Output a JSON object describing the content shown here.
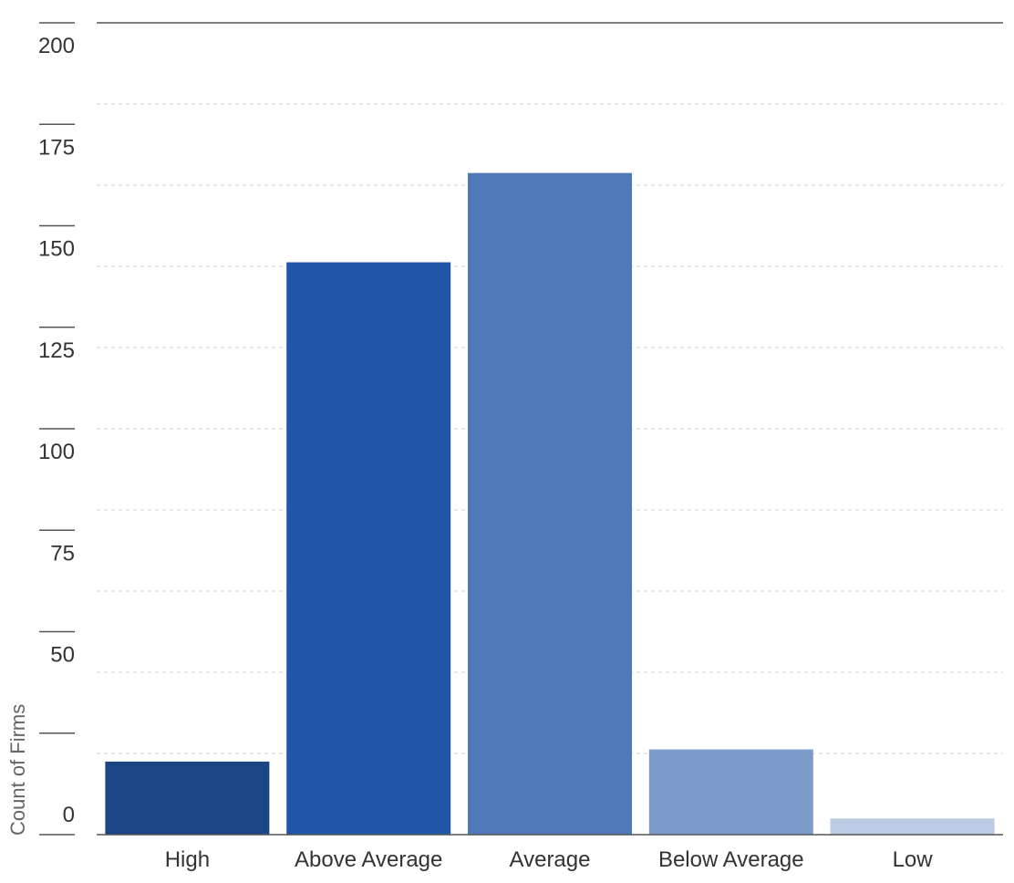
{
  "chart_data": {
    "type": "bar",
    "ylabel": "Count of Firms",
    "xlabel": "",
    "categories": [
      "High",
      "Above Average",
      "Average",
      "Below Average",
      "Low"
    ],
    "values": [
      18,
      141,
      163,
      21,
      4
    ],
    "colors": [
      "#1b4585",
      "#1f56a7",
      "#4f79b8",
      "#7b9bca",
      "#bccce5"
    ],
    "ylim": [
      0,
      200
    ],
    "yticks": [
      "200",
      "175",
      "150",
      "125",
      "100",
      "75",
      "50",
      "0"
    ],
    "grid": true
  }
}
